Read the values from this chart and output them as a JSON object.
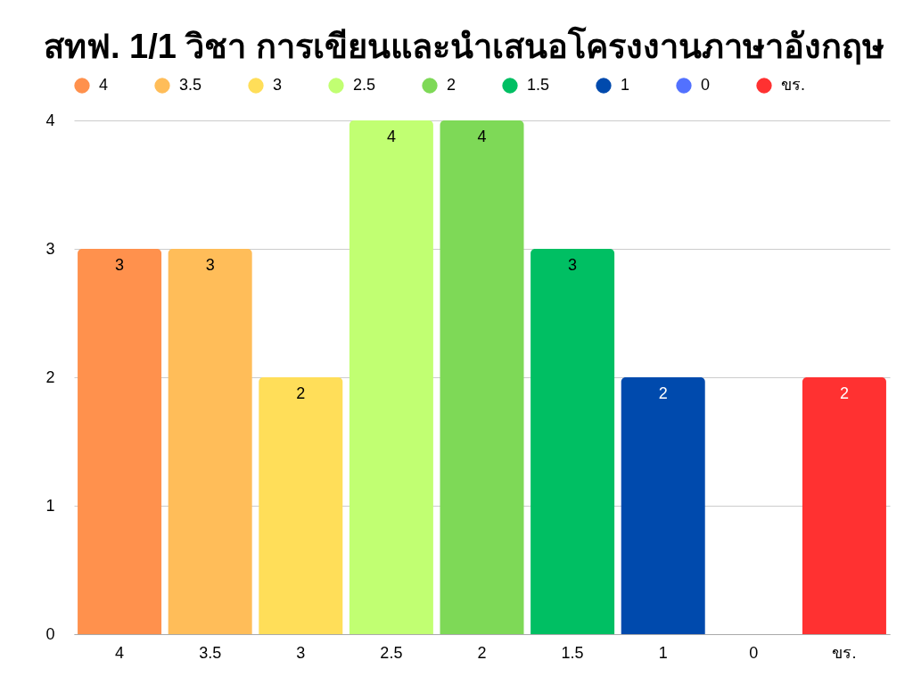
{
  "chart_data": {
    "type": "bar",
    "title": "สทฟ. 1/1 วิชา การเขียนและนำเสนอโครงงานภาษาอังกฤษ",
    "categories": [
      "4",
      "3.5",
      "3",
      "2.5",
      "2",
      "1.5",
      "1",
      "0",
      "ขร."
    ],
    "stacked": true,
    "series": [
      {
        "name": "4",
        "color": "#ff914d",
        "values": [
          3,
          null,
          null,
          null,
          null,
          null,
          null,
          null,
          null
        ],
        "value_labels": [
          "3",
          null,
          null,
          null,
          null,
          null,
          null,
          null,
          null
        ]
      },
      {
        "name": "3.5",
        "color": "#ffbd59",
        "values": [
          null,
          3,
          null,
          null,
          null,
          null,
          null,
          null,
          null
        ],
        "value_labels": [
          null,
          "3",
          null,
          null,
          null,
          null,
          null,
          null,
          null
        ]
      },
      {
        "name": "3",
        "color": "#ffde59",
        "values": [
          null,
          null,
          2,
          null,
          null,
          null,
          null,
          null,
          null
        ],
        "value_labels": [
          null,
          null,
          "2",
          null,
          null,
          null,
          null,
          null,
          null
        ]
      },
      {
        "name": "2.5",
        "color": "#c1ff72",
        "values": [
          null,
          null,
          null,
          4,
          null,
          null,
          null,
          null,
          null
        ],
        "value_labels": [
          null,
          null,
          null,
          "4",
          null,
          null,
          null,
          null,
          null
        ]
      },
      {
        "name": "2",
        "color": "#7ed957",
        "values": [
          null,
          null,
          null,
          null,
          4,
          null,
          null,
          null,
          null
        ],
        "value_labels": [
          null,
          null,
          null,
          null,
          "4",
          null,
          null,
          null,
          null
        ]
      },
      {
        "name": "1.5",
        "color": "#00bf63",
        "values": [
          null,
          null,
          null,
          null,
          null,
          3,
          null,
          null,
          null
        ],
        "value_labels": [
          null,
          null,
          null,
          null,
          null,
          "3",
          null,
          null,
          null
        ]
      },
      {
        "name": "1",
        "color": "#004aad",
        "values": [
          null,
          null,
          null,
          null,
          null,
          null,
          2,
          null,
          null
        ],
        "value_labels": [
          null,
          null,
          null,
          null,
          null,
          null,
          "2",
          null,
          null
        ]
      },
      {
        "name": "0",
        "color": "#5271ff",
        "values": [
          null,
          null,
          null,
          null,
          null,
          null,
          null,
          0,
          null
        ],
        "value_labels": [
          null,
          null,
          null,
          null,
          null,
          null,
          null,
          null,
          null
        ]
      },
      {
        "name": "ขร.",
        "color": "#ff3131",
        "values": [
          null,
          null,
          null,
          null,
          null,
          null,
          null,
          null,
          2
        ],
        "value_labels": [
          null,
          null,
          null,
          null,
          null,
          null,
          null,
          null,
          "2"
        ]
      }
    ],
    "ylim": [
      0,
      4
    ],
    "yticks": [
      0,
      1,
      2,
      3,
      4
    ],
    "grid": "y",
    "legend": "top"
  }
}
